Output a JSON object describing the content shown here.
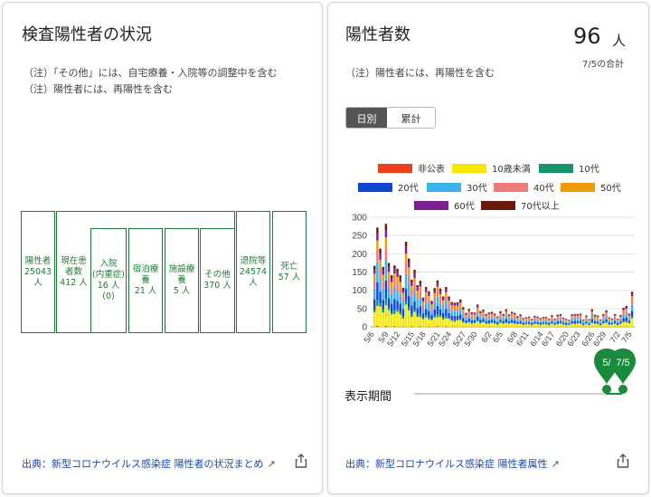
{
  "left": {
    "title": "検査陽性者の状況",
    "notes": [
      "（注）「その他」には、自宅療養・入院等の調整中を含む",
      "（注）陽性者には、再陽性を含む"
    ],
    "boxes": {
      "positive": "陽性者\n25043\n人",
      "current": "現在患\n者数\n412 人",
      "hospital": "入院\n(内重症)\n16 人\n(0)",
      "hotel": "宿泊療\n養\n21 人",
      "facility": "施設療\n養\n5 人",
      "other": "その他\n370 人",
      "discharged": "退院等\n24574\n人",
      "death": "死亡\n57 人"
    },
    "source": "出典：新型コロナウイルス感染症 陽性者の状況まとめ",
    "ext_icon": "external-link-icon",
    "share_icon": "share-icon"
  },
  "right": {
    "title": "陽性者数",
    "count": "96",
    "count_unit": "人",
    "date_note": "7/5の合計",
    "note": "（注）陽性者には、再陽性を含む",
    "toggle": [
      "日別",
      "累計"
    ],
    "toggle_selected": "日別",
    "period_label": "表示期間",
    "slider_start": "5/",
    "slider_end": "7/5",
    "source": "出典：新型コロナウイルス感染症 陽性者属性",
    "ext_icon": "external-link-icon",
    "share_icon": "share-icon"
  },
  "colors": {
    "green": "#1e7b34",
    "pin": "#1a8a3c",
    "link": "#1b47b5",
    "toggle_selected_bg": "#555555"
  },
  "chart_data": {
    "type": "bar",
    "stacked": true,
    "ylim": [
      0,
      300
    ],
    "yticks": [
      "0",
      "50",
      "100",
      "150",
      "200",
      "250",
      "300"
    ],
    "xtick_labels": [
      "5/6",
      "5/9",
      "5/12",
      "5/15",
      "5/18",
      "5/21",
      "5/24",
      "5/27",
      "5/30",
      "6/2",
      "6/5",
      "6/8",
      "6/11",
      "6/14",
      "6/17",
      "6/20",
      "6/23",
      "6/26",
      "6/29",
      "7/2",
      "7/5"
    ],
    "series": [
      {
        "name": "非公表",
        "color": "#f0401a"
      },
      {
        "name": "10歳未満",
        "color": "#f7e800"
      },
      {
        "name": "10代",
        "color": "#14966a"
      },
      {
        "name": "20代",
        "color": "#1046d4"
      },
      {
        "name": "30代",
        "color": "#3db3ee"
      },
      {
        "name": "40代",
        "color": "#f07b7b"
      },
      {
        "name": "50代",
        "color": "#f09a0e"
      },
      {
        "name": "60代",
        "color": "#7d2091"
      },
      {
        "name": "70代以上",
        "color": "#6b1a0a"
      }
    ],
    "totals": [
      167,
      272,
      214,
      164,
      282,
      175,
      141,
      168,
      159,
      141,
      107,
      233,
      187,
      129,
      156,
      114,
      126,
      80,
      109,
      97,
      71,
      106,
      127,
      105,
      83,
      109,
      83,
      68,
      66,
      67,
      75,
      54,
      38,
      49,
      40,
      39,
      61,
      43,
      47,
      35,
      39,
      41,
      36,
      28,
      43,
      35,
      48,
      34,
      41,
      38,
      29,
      34,
      24,
      26,
      28,
      22,
      30,
      28,
      24,
      27,
      27,
      22,
      32,
      22,
      33,
      35,
      25,
      22,
      19,
      34,
      35,
      35,
      36,
      20,
      31,
      21,
      48,
      33,
      31,
      20,
      35,
      45,
      26,
      23,
      35,
      22,
      32,
      52,
      57,
      36,
      96
    ]
  }
}
